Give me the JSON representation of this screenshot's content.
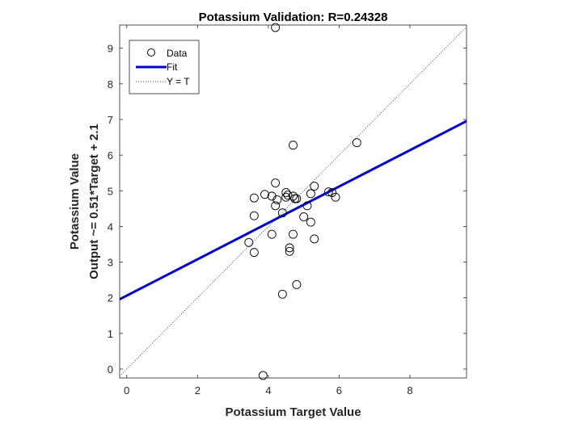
{
  "chart_data": {
    "type": "scatter",
    "title": "Potassium Validation: R=0.24328",
    "xlabel": "Potassium Target Value",
    "ylabel": [
      "Potassium Value",
      "Output ~= 0.51*Target + 2.1"
    ],
    "xlim": [
      -0.2,
      9.6
    ],
    "ylim": [
      -0.25,
      9.65
    ],
    "xticks": [
      0,
      2,
      4,
      6,
      8
    ],
    "yticks": [
      0,
      1,
      2,
      3,
      4,
      5,
      6,
      7,
      8,
      9
    ],
    "grid": false,
    "legend_position": "top-left",
    "series": [
      {
        "name": "Data",
        "kind": "markers",
        "marker": "circle-open",
        "color": "#000000",
        "points": [
          [
            4.2,
            9.58
          ],
          [
            3.85,
            -0.18
          ],
          [
            4.7,
            6.28
          ],
          [
            6.5,
            6.35
          ],
          [
            4.2,
            5.22
          ],
          [
            5.3,
            5.13
          ],
          [
            4.5,
            4.95
          ],
          [
            4.5,
            4.82
          ],
          [
            4.25,
            4.75
          ],
          [
            4.75,
            4.78
          ],
          [
            4.8,
            4.78
          ],
          [
            4.7,
            4.85
          ],
          [
            4.55,
            4.88
          ],
          [
            5.2,
            4.92
          ],
          [
            5.7,
            4.97
          ],
          [
            5.8,
            4.95
          ],
          [
            5.9,
            4.82
          ],
          [
            3.6,
            4.8
          ],
          [
            3.9,
            4.9
          ],
          [
            4.1,
            4.85
          ],
          [
            4.2,
            4.58
          ],
          [
            5.1,
            4.58
          ],
          [
            4.4,
            4.38
          ],
          [
            5.0,
            4.27
          ],
          [
            3.6,
            4.3
          ],
          [
            5.2,
            4.12
          ],
          [
            4.1,
            3.78
          ],
          [
            4.7,
            3.78
          ],
          [
            5.3,
            3.65
          ],
          [
            3.45,
            3.55
          ],
          [
            4.6,
            3.4
          ],
          [
            4.6,
            3.3
          ],
          [
            3.6,
            3.27
          ],
          [
            4.8,
            2.37
          ],
          [
            4.4,
            2.1
          ]
        ]
      },
      {
        "name": "Fit",
        "kind": "line",
        "color": "#0000cc",
        "slope": 0.51,
        "intercept": 2.06
      },
      {
        "name": "Y = T",
        "kind": "line",
        "color": "#444444",
        "dotted": true,
        "slope": 1,
        "intercept": 0
      }
    ]
  }
}
